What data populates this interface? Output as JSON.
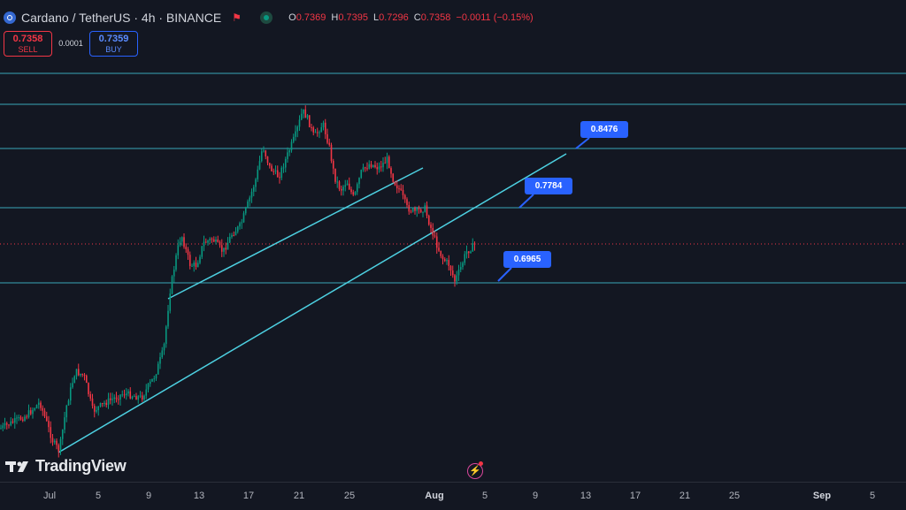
{
  "header": {
    "title": "Cardano / TetherUS · 4h · BINANCE",
    "icon": "ada-coin-icon",
    "ohlc": {
      "o_label": "O",
      "o_value": "0.7369",
      "h_label": "H",
      "h_value": "0.7395",
      "l_label": "L",
      "l_value": "0.7296",
      "c_label": "C",
      "c_value": "0.7358",
      "change": "−0.0011 (−0.15%)"
    }
  },
  "trade": {
    "sell_price": "0.7358",
    "sell_label": "SELL",
    "spread": "0.0001",
    "buy_price": "0.7359",
    "buy_label": "BUY"
  },
  "callouts": [
    "0.8476",
    "0.7784",
    "0.6965"
  ],
  "branding": {
    "logo_text": "TradingView"
  },
  "colors": {
    "background": "#131722",
    "up": "#089981",
    "down": "#f23645",
    "drawing": "#4dd0e1",
    "callout": "#2962ff"
  },
  "chart_data": {
    "type": "candlestick",
    "symbol": "ADAUSDT",
    "interval": "4h",
    "x_ticks": [
      "Jul",
      "5",
      "9",
      "13",
      "17",
      "21",
      "25",
      "Aug",
      "5",
      "9",
      "13",
      "17",
      "21",
      "25",
      "Sep",
      "5"
    ],
    "horizontal_levels": [
      0.8476,
      0.7784,
      0.6965
    ],
    "current_price": 0.7358,
    "range_high": 0.885,
    "range_low": 0.551
  }
}
